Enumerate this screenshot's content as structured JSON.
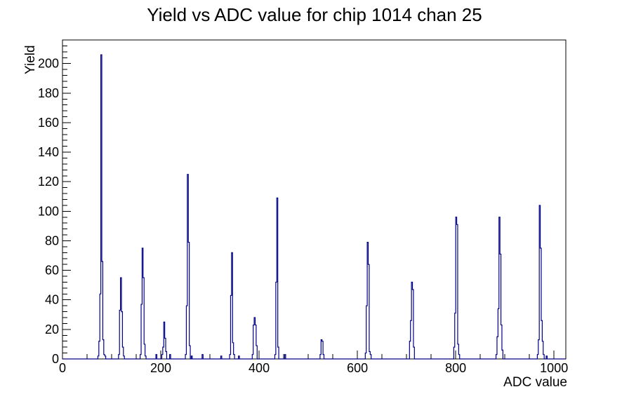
{
  "page": {
    "background_color": "#ffffff",
    "foreground_color": "#000000"
  },
  "chart_data": {
    "type": "bar",
    "subtype": "step-histogram",
    "title": "Yield vs ADC value for chip 1014 chan 25",
    "xlabel": "ADC value",
    "ylabel": "Yield",
    "xlim": [
      0,
      1024
    ],
    "ylim": [
      0,
      216
    ],
    "x_major_ticks": [
      0,
      200,
      400,
      600,
      800,
      1000
    ],
    "x_minor_step": 50,
    "y_major_ticks": [
      0,
      20,
      40,
      60,
      80,
      100,
      120,
      140,
      160,
      180,
      200
    ],
    "y_minor_step": 4,
    "grid": false,
    "legend": false,
    "line_color": "#000088",
    "axis_color": "#000000",
    "bin_width_adc": 2,
    "bins": [
      [
        72,
        2
      ],
      [
        74,
        12
      ],
      [
        76,
        44
      ],
      [
        78,
        206
      ],
      [
        80,
        66
      ],
      [
        82,
        13
      ],
      [
        84,
        3
      ],
      [
        86,
        2
      ],
      [
        114,
        3
      ],
      [
        116,
        33
      ],
      [
        118,
        55
      ],
      [
        120,
        32
      ],
      [
        122,
        8
      ],
      [
        124,
        2
      ],
      [
        158,
        3
      ],
      [
        160,
        37
      ],
      [
        162,
        75
      ],
      [
        164,
        55
      ],
      [
        166,
        10
      ],
      [
        168,
        2
      ],
      [
        190,
        3
      ],
      [
        202,
        3
      ],
      [
        204,
        8
      ],
      [
        206,
        25
      ],
      [
        208,
        14
      ],
      [
        210,
        5
      ],
      [
        218,
        3
      ],
      [
        250,
        3
      ],
      [
        252,
        36
      ],
      [
        254,
        125
      ],
      [
        256,
        79
      ],
      [
        258,
        9
      ],
      [
        262,
        2
      ],
      [
        284,
        3
      ],
      [
        322,
        2
      ],
      [
        340,
        3
      ],
      [
        342,
        43
      ],
      [
        344,
        72
      ],
      [
        346,
        11
      ],
      [
        348,
        3
      ],
      [
        358,
        2
      ],
      [
        386,
        3
      ],
      [
        388,
        23
      ],
      [
        390,
        28
      ],
      [
        392,
        23
      ],
      [
        394,
        9
      ],
      [
        432,
        3
      ],
      [
        434,
        52
      ],
      [
        436,
        109
      ],
      [
        438,
        8
      ],
      [
        452,
        3
      ],
      [
        524,
        3
      ],
      [
        526,
        13
      ],
      [
        528,
        12
      ],
      [
        530,
        3
      ],
      [
        616,
        4
      ],
      [
        618,
        36
      ],
      [
        620,
        79
      ],
      [
        622,
        64
      ],
      [
        624,
        5
      ],
      [
        626,
        3
      ],
      [
        706,
        12
      ],
      [
        708,
        26
      ],
      [
        710,
        52
      ],
      [
        712,
        47
      ],
      [
        714,
        8
      ],
      [
        796,
        8
      ],
      [
        798,
        31
      ],
      [
        800,
        96
      ],
      [
        802,
        91
      ],
      [
        804,
        10
      ],
      [
        806,
        3
      ],
      [
        882,
        3
      ],
      [
        884,
        15
      ],
      [
        886,
        34
      ],
      [
        888,
        96
      ],
      [
        890,
        71
      ],
      [
        892,
        23
      ],
      [
        894,
        6
      ],
      [
        966,
        3
      ],
      [
        968,
        13
      ],
      [
        970,
        104
      ],
      [
        972,
        75
      ],
      [
        974,
        26
      ],
      [
        976,
        12
      ],
      [
        978,
        3
      ],
      [
        984,
        2
      ]
    ]
  }
}
